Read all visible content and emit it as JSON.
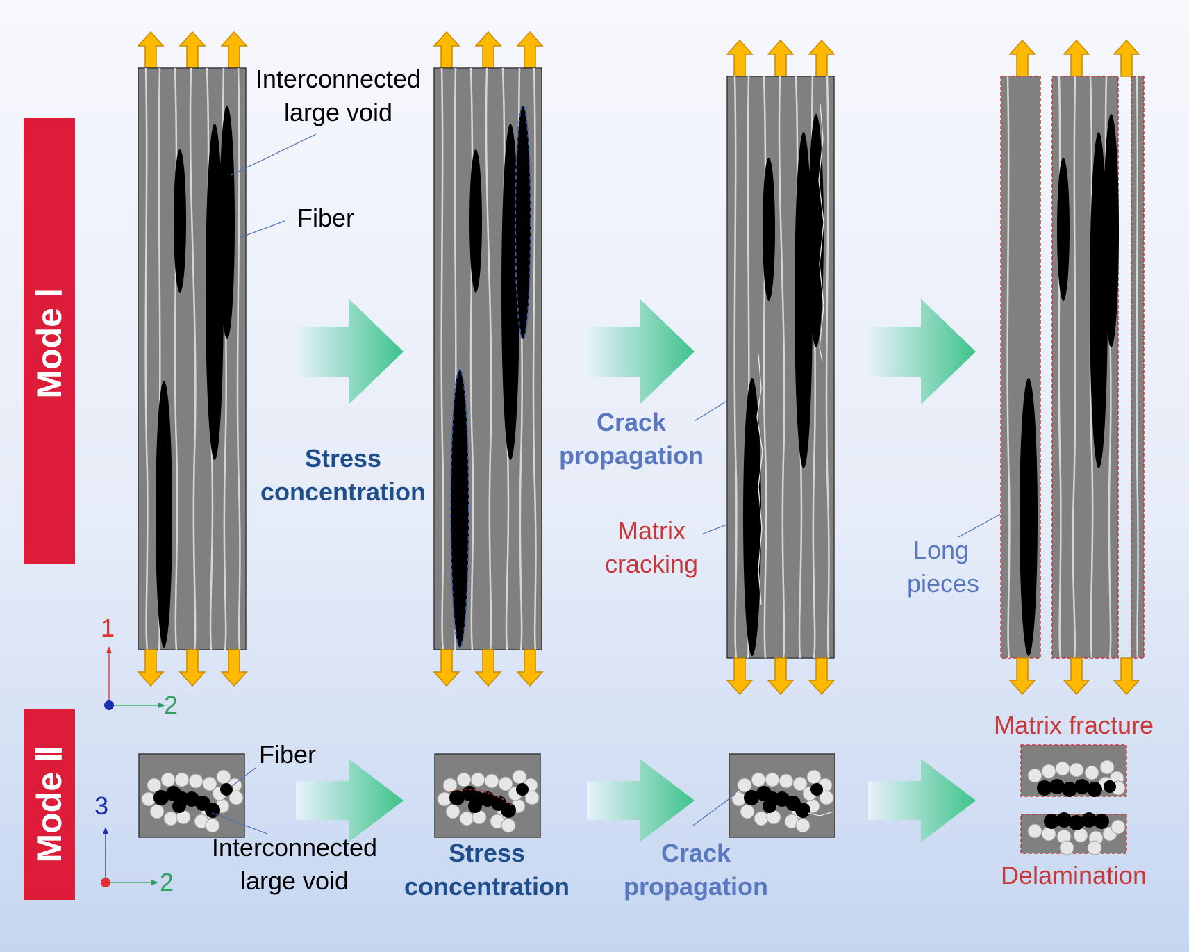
{
  "colors": {
    "mode_band": "#dc1c38",
    "specimen": "#808080",
    "void": "#000000",
    "fiber": "#d6d6d6",
    "load_arrow": "#ffb900",
    "process_arrow_start": "#e6f0fb",
    "process_arrow_end": "#3ec38a",
    "label_dark_blue": "#1f4e8c",
    "label_light_blue": "#5a78c0",
    "label_red": "#c83838"
  },
  "mode1": {
    "band_label": "Mode Ⅰ",
    "void_label_line1": "Interconnected",
    "void_label_line2": "large void",
    "fiber_label": "Fiber",
    "stress_line1": "Stress",
    "stress_line2": "concentration",
    "crack_line1": "Crack",
    "crack_line2": "propagation",
    "matrix_line1": "Matrix",
    "matrix_line2": "cracking",
    "long_line1": "Long",
    "long_line2": "pieces",
    "axis_vertical": "1",
    "axis_horizontal": "2"
  },
  "mode2": {
    "band_label": "Mode Ⅱ",
    "fiber_label": "Fiber",
    "void_label_line1": "Interconnected",
    "void_label_line2": "large void",
    "stress_line1": "Stress",
    "stress_line2": "concentration",
    "crack_line1": "Crack",
    "crack_line2": "propagation",
    "matrix_fracture": "Matrix fracture",
    "delamination": "Delamination",
    "axis_vertical": "3",
    "axis_horizontal": "2"
  },
  "icons": {
    "load": "yellow-load-arrow",
    "process": "gradient-process-arrow"
  }
}
